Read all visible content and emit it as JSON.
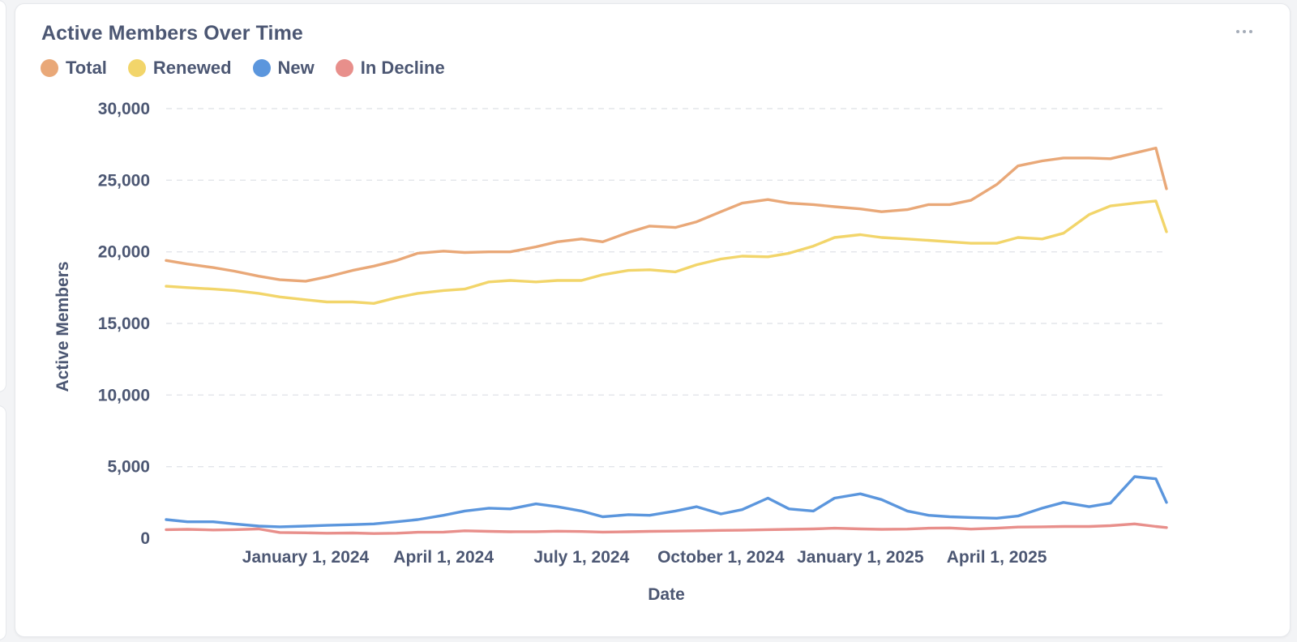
{
  "card": {
    "title": "Active Members Over Time",
    "more_icon": "ellipsis-icon"
  },
  "chart_data": {
    "type": "line",
    "title": "Active Members Over Time",
    "xlabel": "Date",
    "ylabel": "Active Members",
    "ylim": [
      0,
      30000
    ],
    "yticks": [
      0,
      5000,
      10000,
      15000,
      20000,
      25000,
      30000
    ],
    "ytick_labels": [
      "0",
      "5,000",
      "10,000",
      "15,000",
      "20,000",
      "25,000",
      "30,000"
    ],
    "xlim": [
      "2023-10-01",
      "2025-07-22"
    ],
    "xticks": [
      {
        "date": "2024-01-01",
        "label": "January 1, 2024"
      },
      {
        "date": "2024-04-01",
        "label": "April 1, 2024"
      },
      {
        "date": "2024-07-01",
        "label": "July 1, 2024"
      },
      {
        "date": "2024-10-01",
        "label": "October 1, 2024"
      },
      {
        "date": "2025-01-01",
        "label": "January 1, 2025"
      },
      {
        "date": "2025-04-01",
        "label": "April 1, 2025"
      }
    ],
    "grid": true,
    "legend_position": "top-left",
    "x": [
      "2023-10-01",
      "2023-10-15",
      "2023-11-01",
      "2023-11-15",
      "2023-12-01",
      "2023-12-15",
      "2024-01-01",
      "2024-01-15",
      "2024-02-01",
      "2024-02-15",
      "2024-03-01",
      "2024-03-15",
      "2024-04-01",
      "2024-04-15",
      "2024-05-01",
      "2024-05-15",
      "2024-06-01",
      "2024-06-15",
      "2024-07-01",
      "2024-07-15",
      "2024-08-01",
      "2024-08-15",
      "2024-09-01",
      "2024-09-15",
      "2024-10-01",
      "2024-10-15",
      "2024-11-01",
      "2024-11-15",
      "2024-12-01",
      "2024-12-15",
      "2025-01-01",
      "2025-01-15",
      "2025-02-01",
      "2025-02-15",
      "2025-03-01",
      "2025-03-15",
      "2025-04-01",
      "2025-04-15",
      "2025-05-01",
      "2025-05-15",
      "2025-06-01",
      "2025-06-15",
      "2025-07-01",
      "2025-07-15",
      "2025-07-22"
    ],
    "series": [
      {
        "name": "Total",
        "color": "#e9a878",
        "values": [
          19400,
          19150,
          18900,
          18650,
          18300,
          18050,
          17950,
          18250,
          18700,
          19000,
          19400,
          19900,
          20050,
          19950,
          20000,
          20000,
          20350,
          20700,
          20900,
          20700,
          21350,
          21800,
          21700,
          22100,
          22800,
          23400,
          23650,
          23400,
          23300,
          23150,
          23000,
          22800,
          22950,
          23300,
          23300,
          23600,
          24700,
          26000,
          26350,
          26550,
          26550,
          26500,
          26900,
          27250,
          24400
        ]
      },
      {
        "name": "Renewed",
        "color": "#f2d56a",
        "values": [
          17600,
          17500,
          17400,
          17300,
          17100,
          16850,
          16650,
          16500,
          16500,
          16400,
          16800,
          17100,
          17300,
          17400,
          17900,
          18000,
          17900,
          18000,
          18000,
          18400,
          18700,
          18750,
          18600,
          19100,
          19500,
          19700,
          19650,
          19900,
          20400,
          21000,
          21200,
          21000,
          20900,
          20800,
          20700,
          20600,
          20600,
          21000,
          20900,
          21300,
          22600,
          23200,
          23400,
          23550,
          21400
        ]
      },
      {
        "name": "New",
        "color": "#5b96dd",
        "values": [
          1300,
          1150,
          1150,
          1000,
          850,
          800,
          850,
          900,
          950,
          1000,
          1150,
          1300,
          1600,
          1900,
          2100,
          2050,
          2400,
          2200,
          1900,
          1500,
          1650,
          1600,
          1900,
          2200,
          1700,
          2000,
          2800,
          2050,
          1900,
          2800,
          3100,
          2700,
          1900,
          1600,
          1500,
          1450,
          1400,
          1550,
          2100,
          2500,
          2200,
          2450,
          4300,
          4150,
          2500
        ]
      },
      {
        "name": "In Decline",
        "color": "#e88f8b",
        "values": [
          600,
          620,
          580,
          600,
          650,
          400,
          380,
          350,
          370,
          330,
          350,
          420,
          430,
          520,
          480,
          450,
          460,
          490,
          470,
          430,
          450,
          480,
          500,
          520,
          550,
          560,
          600,
          620,
          650,
          700,
          650,
          620,
          640,
          700,
          720,
          640,
          700,
          780,
          800,
          820,
          820,
          880,
          1000,
          820,
          750
        ]
      }
    ]
  }
}
